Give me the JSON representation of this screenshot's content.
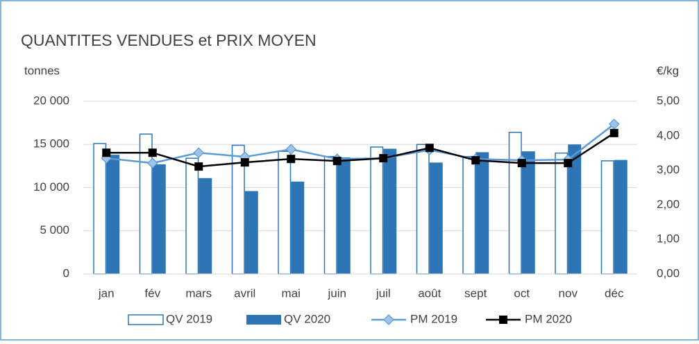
{
  "chart_data": {
    "type": "bar",
    "title": "QUANTITES VENDUES et PRIX MOYEN",
    "y_label": "tonnes",
    "y2_label": "€/kg",
    "categories": [
      "jan",
      "fév",
      "mars",
      "avril",
      "mai",
      "juin",
      "juil",
      "août",
      "sept",
      "oct",
      "nov",
      "déc"
    ],
    "series": [
      {
        "name": "QV 2019",
        "type": "bar",
        "style": "outline",
        "color": "#2e75b6",
        "values": [
          15100,
          16200,
          13400,
          14900,
          14200,
          13600,
          14700,
          15000,
          13600,
          16400,
          14000,
          13100
        ]
      },
      {
        "name": "QV 2020",
        "type": "bar",
        "style": "solid",
        "color": "#2e75b6",
        "values": [
          13800,
          12700,
          11100,
          9600,
          10700,
          13500,
          14500,
          12900,
          14100,
          14200,
          15000,
          13200
        ]
      },
      {
        "name": "PM 2019",
        "type": "line",
        "axis": "y2",
        "marker": "diamond",
        "color": "#5b9bd5",
        "values": [
          3.35,
          3.21,
          3.51,
          3.39,
          3.61,
          3.33,
          3.35,
          3.59,
          3.33,
          3.29,
          3.31,
          4.34
        ]
      },
      {
        "name": "PM 2020",
        "type": "line",
        "axis": "y2",
        "marker": "square",
        "color": "#000000",
        "values": [
          3.51,
          3.51,
          3.11,
          3.23,
          3.33,
          3.27,
          3.35,
          3.65,
          3.29,
          3.21,
          3.21,
          4.08
        ]
      }
    ],
    "ylim": [
      0,
      20000
    ],
    "yticks": [
      0,
      {
        "value": 5000,
        "label": "5 000"
      },
      {
        "value": 10000,
        "label": "10 000"
      },
      {
        "value": 15000,
        "label": "15 000"
      },
      {
        "value": 20000,
        "label": "20 000"
      }
    ],
    "y2lim": [
      0,
      5
    ],
    "y2ticks": [
      {
        "value": 0,
        "label": "0,00"
      },
      {
        "value": 1,
        "label": "1,00"
      },
      {
        "value": 2,
        "label": "2,00"
      },
      {
        "value": 3,
        "label": "3,00"
      },
      {
        "value": 4,
        "label": "4,00"
      },
      {
        "value": 5,
        "label": "5,00"
      }
    ],
    "grid": true,
    "legend": "bottom"
  }
}
